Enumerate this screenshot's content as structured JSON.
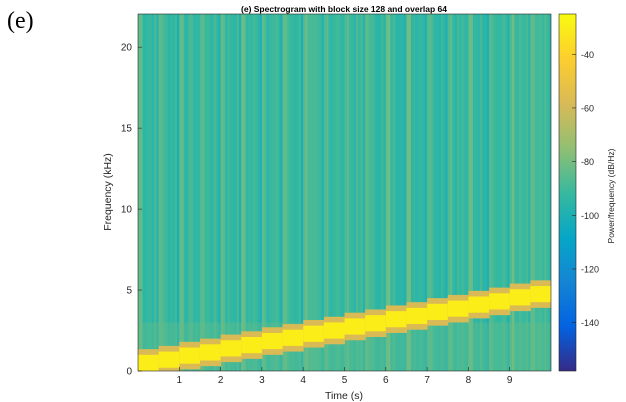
{
  "panel_letter": "(e)",
  "chart_data": {
    "type": "heatmap",
    "title": "(e) Spectrogram with block size 128 and overlap 64",
    "xlabel": "Time (s)",
    "ylabel": "Frequency (kHz)",
    "xlim": [
      0,
      10
    ],
    "ylim": [
      0,
      22.05
    ],
    "x_ticks": [
      1,
      2,
      3,
      4,
      5,
      6,
      7,
      8,
      9
    ],
    "y_ticks": [
      0,
      5,
      10,
      15,
      20
    ],
    "colormap": "parula",
    "colorbar": {
      "label": "Power/frequency (dB/Hz)",
      "range": [
        -158,
        -25
      ],
      "ticks": [
        -40,
        -60,
        -80,
        -100,
        -120,
        -140
      ]
    },
    "background_level_db": -92,
    "stripe_period_s": 0.5,
    "tone_band": {
      "description": "stepped tone, one step per 0.5 s",
      "time_start": [
        0,
        0.5,
        1,
        1.5,
        2,
        2.5,
        3,
        3.5,
        4,
        4.5,
        5,
        5.5,
        6,
        6.5,
        7,
        7.5,
        8,
        8.5,
        9,
        9.5
      ],
      "freq_center_khz": [
        0.5,
        0.7,
        0.95,
        1.15,
        1.4,
        1.6,
        1.85,
        2.05,
        2.3,
        2.5,
        2.75,
        2.95,
        3.2,
        3.4,
        3.65,
        3.85,
        4.1,
        4.3,
        4.55,
        4.75
      ],
      "bandwidth_khz": 1.0,
      "level_db": -30
    }
  }
}
